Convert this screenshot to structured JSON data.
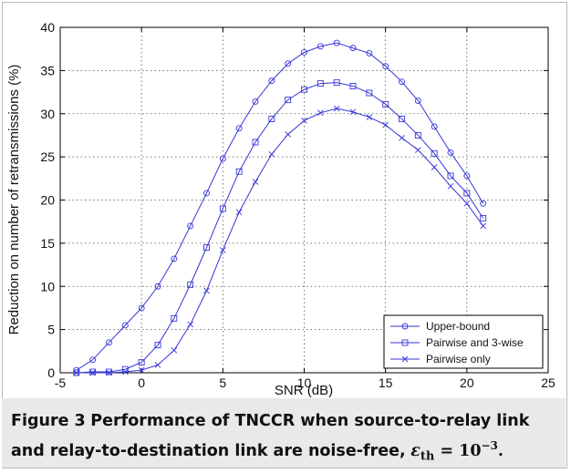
{
  "chart_data": {
    "type": "line",
    "xlabel": "SNR (dB)",
    "ylabel": "Reduction on number of retransmissions (%)",
    "xlim": [
      -5,
      25
    ],
    "ylim": [
      0,
      40
    ],
    "xticks": [
      -5,
      0,
      5,
      10,
      15,
      20,
      25
    ],
    "yticks": [
      0,
      5,
      10,
      15,
      20,
      25,
      30,
      35,
      40
    ],
    "grid": true,
    "legend_position": "bottom-right",
    "x": [
      -4,
      -3,
      -2,
      -1,
      0,
      1,
      2,
      3,
      4,
      5,
      6,
      7,
      8,
      9,
      10,
      11,
      12,
      13,
      14,
      15,
      16,
      17,
      18,
      19,
      20,
      21
    ],
    "series": [
      {
        "name": "Upper-bound",
        "marker": "circle",
        "color": "#3535d8",
        "values": [
          0.3,
          1.5,
          3.5,
          5.5,
          7.5,
          10.0,
          13.2,
          17.0,
          20.8,
          24.8,
          28.3,
          31.4,
          33.8,
          35.8,
          37.1,
          37.8,
          38.2,
          37.6,
          37.0,
          35.5,
          33.7,
          31.5,
          28.5,
          25.5,
          22.8,
          19.6
        ]
      },
      {
        "name": "Pairwise and 3-wise",
        "marker": "square",
        "color": "#3535d8",
        "values": [
          0.0,
          0.1,
          0.1,
          0.4,
          1.2,
          3.2,
          6.3,
          10.2,
          14.5,
          19.0,
          23.3,
          26.7,
          29.4,
          31.6,
          32.8,
          33.5,
          33.6,
          33.2,
          32.4,
          31.1,
          29.4,
          27.5,
          25.4,
          22.8,
          20.8,
          17.9
        ]
      },
      {
        "name": "Pairwise only",
        "marker": "x",
        "color": "#3535d8",
        "values": [
          0.0,
          0.0,
          0.0,
          0.1,
          0.3,
          0.9,
          2.6,
          5.6,
          9.5,
          14.2,
          18.6,
          22.1,
          25.3,
          27.6,
          29.2,
          30.1,
          30.6,
          30.2,
          29.6,
          28.7,
          27.2,
          25.8,
          23.8,
          21.6,
          19.6,
          17.0
        ]
      }
    ]
  },
  "caption": {
    "label": "Figure 3",
    "text": "Performance of TNCCR when source-to-relay link and relay-to-destination link are noise-free,",
    "eps_symbol": "ε",
    "eps_subscript": "th",
    "equals": " = 10",
    "exponent": "−3",
    "end": "."
  }
}
